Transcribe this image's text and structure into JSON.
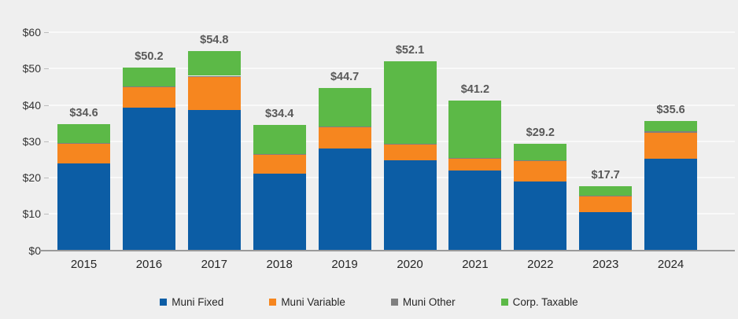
{
  "chart_data": {
    "type": "bar",
    "stacked": true,
    "title": "",
    "xlabel": "",
    "ylabel": "",
    "categories": [
      "2015",
      "2016",
      "2017",
      "2018",
      "2019",
      "2020",
      "2021",
      "2022",
      "2023",
      "2024"
    ],
    "series": [
      {
        "name": "Muni Fixed",
        "color": "#0C5DA5",
        "values": [
          24.0,
          39.3,
          38.5,
          21.0,
          28.0,
          24.8,
          22.0,
          19.0,
          10.5,
          25.2
        ]
      },
      {
        "name": "Muni Variable",
        "color": "#F6861F",
        "values": [
          5.5,
          5.7,
          9.4,
          5.4,
          6.0,
          4.4,
          3.4,
          5.6,
          4.4,
          7.2
        ]
      },
      {
        "name": "Muni Other",
        "color": "#7F7F7F",
        "values": [
          0.1,
          0.1,
          0.1,
          0.1,
          0.1,
          0.1,
          0.1,
          0.1,
          0.1,
          0.4
        ]
      },
      {
        "name": "Corp. Taxable",
        "color": "#5CB947",
        "values": [
          5.0,
          5.1,
          6.8,
          7.9,
          10.6,
          22.8,
          15.7,
          4.5,
          2.7,
          2.8
        ]
      }
    ],
    "totals": [
      34.6,
      50.2,
      54.8,
      34.4,
      44.7,
      52.1,
      41.2,
      29.2,
      17.7,
      35.6
    ],
    "total_labels": [
      "$34.6",
      "$50.2",
      "$54.8",
      "$34.4",
      "$44.7",
      "$52.1",
      "$41.2",
      "$29.2",
      "$17.7",
      "$35.6"
    ],
    "yaxis": {
      "min": 0,
      "max": 60,
      "step": 10,
      "tick_labels": [
        "$0",
        "$10",
        "$20",
        "$30",
        "$40",
        "$50",
        "$60"
      ]
    },
    "grid": true,
    "legend_position": "bottom"
  },
  "colors": {
    "background": "#efefef",
    "gridline": "#f9f9f9",
    "axis_line": "#9a9a9a",
    "total_label_text": "#595959",
    "axis_text": "#333333"
  }
}
